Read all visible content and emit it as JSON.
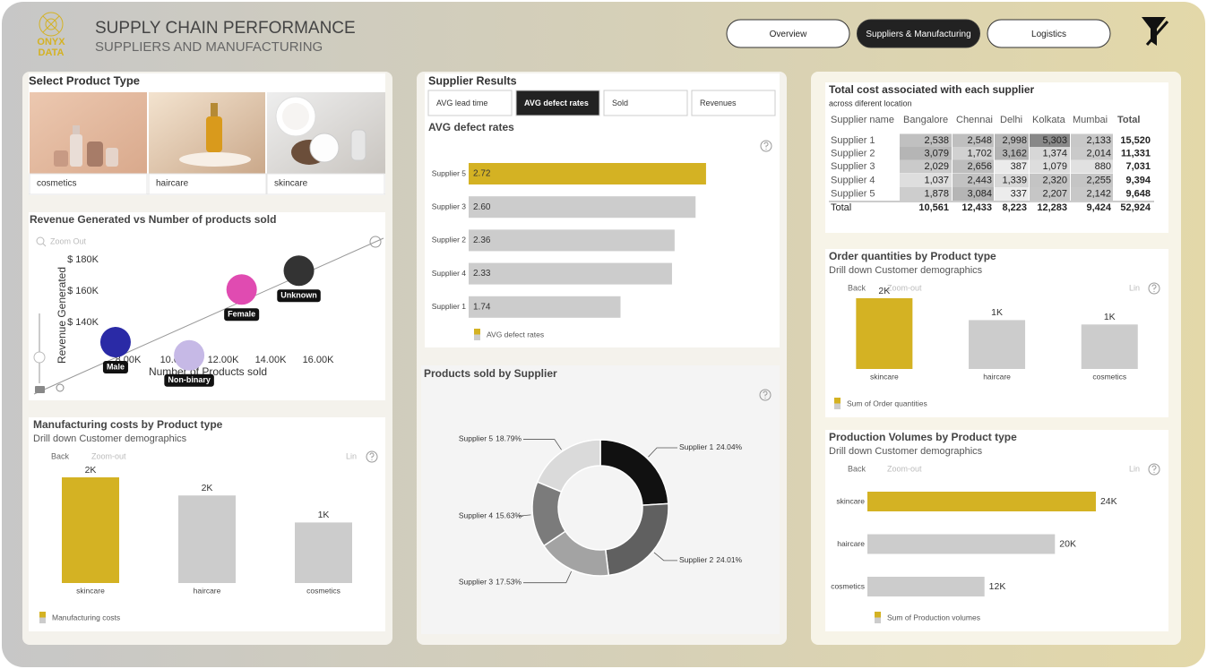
{
  "header": {
    "logo": [
      "ONYX",
      "DATA"
    ],
    "title": "SUPPLY CHAIN PERFORMANCE",
    "subtitle": "SUPPLIERS AND MANUFACTURING"
  },
  "nav": [
    "Overview",
    "Suppliers & Manufacturing",
    "Logistics"
  ],
  "nav_active": 1,
  "product_select": {
    "title": "Select Product Type",
    "items": [
      "cosmetics",
      "haircare",
      "skincare"
    ]
  },
  "supplier_tabs": {
    "title": "Supplier Results",
    "tabs": [
      "AVG lead time",
      "AVG defect rates",
      "Sold",
      "Revenues"
    ],
    "active": 1
  },
  "table": {
    "title": "Total cost associated with each supplier",
    "subtitle": "across diferent location",
    "columns": [
      "Supplier name",
      "Bangalore",
      "Chennai",
      "Delhi",
      "Kolkata",
      "Mumbai",
      "Total"
    ],
    "rows": [
      [
        "Supplier 1",
        "2,538",
        "2,548",
        "2,998",
        "5,303",
        "2,133",
        "15,520"
      ],
      [
        "Supplier 2",
        "3,079",
        "1,702",
        "3,162",
        "1,374",
        "2,014",
        "11,331"
      ],
      [
        "Supplier 3",
        "2,029",
        "2,656",
        "387",
        "1,079",
        "880",
        "7,031"
      ],
      [
        "Supplier 4",
        "1,037",
        "2,443",
        "1,339",
        "2,320",
        "2,255",
        "9,394"
      ],
      [
        "Supplier 5",
        "1,878",
        "3,084",
        "337",
        "2,207",
        "2,142",
        "9,648"
      ],
      [
        "Total",
        "10,561",
        "12,433",
        "8,223",
        "12,283",
        "9,424",
        "52,924"
      ]
    ]
  },
  "chart_data": [
    {
      "type": "scatter",
      "title": "Revenue Generated vs Number of products sold",
      "toolbar": [
        "Zoom Out"
      ],
      "x_label": "Number of Products sold",
      "y_label": "Revenue Generated",
      "categories": [
        "Male",
        "Non-binary",
        "Female",
        "Unknown"
      ],
      "x": [
        7470,
        10570,
        12780,
        15190
      ],
      "values": [
        127400,
        119000,
        161000,
        173000
      ],
      "colors": [
        "#2a2aa6",
        "#c6b9e6",
        "#e04bb1",
        "#333333"
      ],
      "xlim": [
        4000,
        19000
      ],
      "xticks": [
        {
          "value": 8000,
          "label": "8.00K"
        },
        {
          "value": 10000,
          "label": "10.00K"
        },
        {
          "value": 12000,
          "label": "12.00K"
        },
        {
          "value": 14000,
          "label": "14.00K"
        },
        {
          "value": 16000,
          "label": "16.00K"
        }
      ],
      "ylim": [
        95000,
        198000
      ],
      "yticks": [
        {
          "value": 140000,
          "label": "$ 140K"
        },
        {
          "value": 160000,
          "label": "$ 160K"
        },
        {
          "value": 180000,
          "label": "$ 180K"
        }
      ]
    },
    {
      "type": "bar",
      "title": "Manufacturing costs by Product type",
      "subtitle": "Drill down Customer demographics",
      "toolbar": [
        "Back",
        "Zoom-out",
        "Lin"
      ],
      "categories": [
        "skincare",
        "haircare",
        "cosmetics"
      ],
      "series": [
        {
          "name": "Manufacturing costs",
          "values": [
            1911,
            1583,
            1095
          ],
          "value_labels": [
            "2K",
            "2K",
            "1K"
          ]
        }
      ],
      "colors": [
        "#d4b223",
        "#cccccc",
        "#cccccc"
      ],
      "ylim": [
        0,
        2000
      ]
    },
    {
      "type": "bar",
      "horizontal": true,
      "title": "AVG defect rates",
      "categories": [
        "Supplier 5",
        "Supplier 3",
        "Supplier 2",
        "Supplier 4",
        "Supplier 1"
      ],
      "series": [
        {
          "name": "AVG defect rates",
          "values": [
            2.72,
            2.6,
            2.36,
            2.33,
            1.74
          ],
          "value_labels": [
            "2.72",
            "2.60",
            "2.36",
            "2.33",
            "1.74"
          ]
        }
      ],
      "colors": [
        "#d4b223",
        "#cccccc",
        "#cccccc",
        "#cccccc",
        "#cccccc"
      ],
      "xlim": [
        0,
        3
      ]
    },
    {
      "type": "donut",
      "title": "Products sold by Supplier",
      "categories": [
        "Supplier 1",
        "Supplier 2",
        "Supplier 3",
        "Supplier 4",
        "Supplier 5"
      ],
      "values": [
        24.04,
        24.01,
        17.53,
        15.63,
        18.79
      ],
      "value_labels": [
        "24.04%",
        "24.01%",
        "17.53%",
        "15.63%",
        "18.79%"
      ],
      "colors": [
        "#111111",
        "#606060",
        "#a3a3a3",
        "#7b7b7b",
        "#dadada"
      ]
    },
    {
      "type": "bar",
      "title": "Order quantities by Product type",
      "subtitle": "Drill down Customer demographics",
      "toolbar": [
        "Back",
        "Zoom-out",
        "Lin"
      ],
      "categories": [
        "skincare",
        "haircare",
        "cosmetics"
      ],
      "series": [
        {
          "name": "Sum of Order quantities",
          "values": [
            2099,
            1450,
            1320
          ],
          "value_labels": [
            "2K",
            "1K",
            "1K"
          ]
        }
      ],
      "colors": [
        "#d4b223",
        "#cccccc",
        "#cccccc"
      ],
      "ylim": [
        0,
        2200
      ]
    },
    {
      "type": "bar",
      "horizontal": true,
      "title": "Production Volumes by Product type",
      "subtitle": "Drill down Customer demographics",
      "toolbar": [
        "Back",
        "Zoom-out",
        "Lin"
      ],
      "categories": [
        "skincare",
        "haircare",
        "cosmetics"
      ],
      "series": [
        {
          "name": "Sum of Production volumes",
          "values": [
            24000,
            19700,
            12300
          ],
          "value_labels": [
            "24K",
            "20K",
            "12K"
          ]
        }
      ],
      "colors": [
        "#d4b223",
        "#cccccc",
        "#cccccc"
      ],
      "xlim": [
        0,
        25000
      ]
    }
  ]
}
